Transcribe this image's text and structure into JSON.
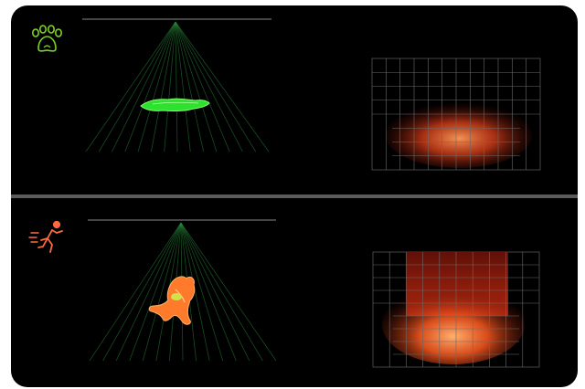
{
  "scenes": [
    {
      "id": "pet",
      "icon": "paw-icon",
      "detection": "pet-lying",
      "accent": "#7ed321",
      "figure_color": "#3fe03a",
      "heat_color": "#ff5a1f",
      "grid_columns": 12,
      "grid_rows": 8
    },
    {
      "id": "human",
      "icon": "running-person-icon",
      "detection": "human-fall",
      "accent": "#ff6a3d",
      "figure_color": "#ff7a2a",
      "heat_color": "#ff5a1f",
      "grid_columns": 10,
      "grid_rows": 9
    }
  ]
}
